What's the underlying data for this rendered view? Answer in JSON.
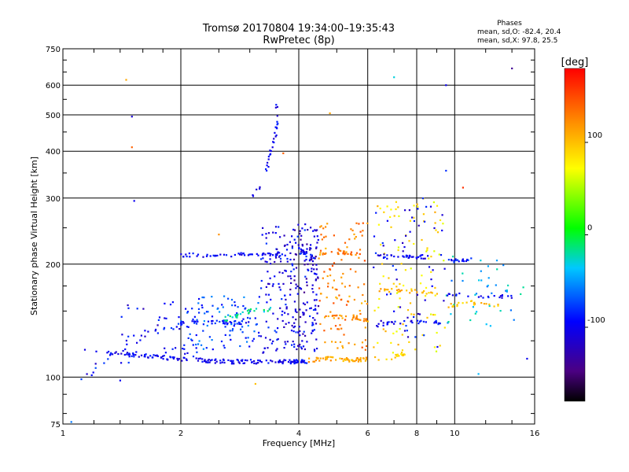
{
  "chart_data": {
    "type": "scatter",
    "title": "Tromsø 20170804 19:34:00–19:35:43",
    "subtitle": "RwPretec (8p)",
    "xlabel": "Frequency [MHz]",
    "ylabel": "Stationary phase Virtual Height [km]",
    "x_scale": "log",
    "y_scale": "log",
    "xlim": [
      1,
      16
    ],
    "ylim": [
      75,
      750
    ],
    "x_ticks": [
      1,
      2,
      4,
      6,
      8,
      10,
      16
    ],
    "y_ticks": [
      75,
      100,
      200,
      300,
      400,
      500,
      600,
      750
    ],
    "grid": true,
    "info": {
      "heading": "Phases",
      "line_o": "mean, sd,O: -82.4, 20.4",
      "line_x": "mean, sd,X:  97.8, 25.5"
    },
    "colorbar": {
      "label": "[deg]",
      "range": [
        -180,
        180
      ],
      "ticks": [
        100,
        0,
        -100
      ],
      "colors": [
        "#000000",
        "#4b0082",
        "#0000ff",
        "#00c8ff",
        "#00ff00",
        "#ffff00",
        "#ff8c00",
        "#ff0000"
      ]
    },
    "traces": [
      {
        "x": [
          1.28,
          1.6,
          2.0,
          2.6,
          3.2,
          3.8,
          4.2
        ],
        "y": [
          116,
          114,
          112,
          110,
          110,
          110,
          110
        ],
        "phase": -100,
        "n": 170
      },
      {
        "x": [
          4.2,
          4.8,
          5.5,
          6.0
        ],
        "y": [
          111,
          112,
          111,
          112
        ],
        "phase": 110,
        "n": 55
      },
      {
        "x": [
          6.2,
          7.0,
          7.5
        ],
        "y": [
          112,
          113,
          116
        ],
        "phase": 90,
        "n": 20
      },
      {
        "x": [
          1.7,
          2.1,
          2.5,
          3.0
        ],
        "y": [
          133,
          140,
          140,
          140
        ],
        "phase": -90,
        "n": 45
      },
      {
        "x": [
          2.6,
          3.0,
          3.4
        ],
        "y": [
          143,
          150,
          152
        ],
        "phase": -20,
        "n": 25
      },
      {
        "x": [
          2.0,
          2.5,
          3.0,
          3.7
        ],
        "y": [
          212,
          211,
          212,
          213
        ],
        "phase": -100,
        "n": 55
      },
      {
        "x": [
          4.0,
          4.4
        ],
        "y": [
          220,
          205
        ],
        "phase": -100,
        "n": 18
      },
      {
        "x": [
          4.5,
          5.2,
          5.8
        ],
        "y": [
          215,
          215,
          213
        ],
        "phase": 130,
        "n": 28
      },
      {
        "x": [
          6.3,
          7.8,
          8.5
        ],
        "y": [
          210,
          210,
          209
        ],
        "phase": -100,
        "n": 30
      },
      {
        "x": [
          9.5,
          11.0
        ],
        "y": [
          205,
          205
        ],
        "phase": -90,
        "n": 18
      },
      {
        "x": [
          4.6,
          5.5,
          6.0
        ],
        "y": [
          145,
          145,
          142
        ],
        "phase": 120,
        "n": 28
      },
      {
        "x": [
          6.3,
          7.2,
          8.2,
          9.3
        ],
        "y": [
          138,
          140,
          140,
          140
        ],
        "phase": -95,
        "n": 35
      },
      {
        "x": [
          6.4,
          7.5,
          8.8
        ],
        "y": [
          170,
          170,
          168
        ],
        "phase": 105,
        "n": 28
      },
      {
        "x": [
          9.5,
          11.0,
          13.0
        ],
        "y": [
          155,
          158,
          155
        ],
        "phase": 100,
        "n": 25
      },
      {
        "x": [
          9.5,
          11.5,
          14.0
        ],
        "y": [
          167,
          165,
          163
        ],
        "phase": -100,
        "n": 22
      },
      {
        "x": [
          3.3,
          3.4,
          3.5,
          3.52
        ],
        "y": [
          350,
          400,
          460,
          545
        ],
        "phase": -100,
        "n": 28
      },
      {
        "x": [
          3.0,
          3.2
        ],
        "y": [
          300,
          320
        ],
        "phase": -100,
        "n": 5
      }
    ],
    "clouds": [
      {
        "x": [
          3.2,
          4.5
        ],
        "y": [
          115,
          260
        ],
        "phase": -100,
        "n": 190
      },
      {
        "x": [
          3.8,
          4.5
        ],
        "y": [
          118,
          255
        ],
        "phase": -120,
        "n": 80
      },
      {
        "x": [
          4.5,
          6.0
        ],
        "y": [
          118,
          260
        ],
        "phase": 125,
        "n": 110
      },
      {
        "x": [
          6.2,
          9.5
        ],
        "y": [
          115,
          300
        ],
        "phase": 85,
        "n": 100
      },
      {
        "x": [
          6.2,
          9.5
        ],
        "y": [
          120,
          300
        ],
        "phase": -100,
        "n": 60
      },
      {
        "x": [
          9.5,
          15.0
        ],
        "y": [
          135,
          210
        ],
        "phase": -40,
        "n": 40
      },
      {
        "x": [
          2.0,
          3.2
        ],
        "y": [
          118,
          165
        ],
        "phase": -75,
        "n": 100
      },
      {
        "x": [
          1.4,
          2.2
        ],
        "y": [
          113,
          160
        ],
        "phase": -100,
        "n": 45
      },
      {
        "x": [
          1.0,
          1.6
        ],
        "y": [
          96,
          120
        ],
        "phase": -95,
        "n": 12
      }
    ],
    "points": [
      {
        "x": 1.45,
        "y": 620,
        "phase": 110
      },
      {
        "x": 1.5,
        "y": 495,
        "phase": -110
      },
      {
        "x": 1.5,
        "y": 410,
        "phase": 140
      },
      {
        "x": 1.52,
        "y": 295,
        "phase": -100
      },
      {
        "x": 4.8,
        "y": 505,
        "phase": 110
      },
      {
        "x": 7.0,
        "y": 630,
        "phase": -30
      },
      {
        "x": 9.5,
        "y": 355,
        "phase": -80
      },
      {
        "x": 9.5,
        "y": 600,
        "phase": -100
      },
      {
        "x": 14.0,
        "y": 665,
        "phase": -140
      },
      {
        "x": 3.65,
        "y": 395,
        "phase": 140
      },
      {
        "x": 3.1,
        "y": 96,
        "phase": 100
      },
      {
        "x": 15.3,
        "y": 112,
        "phase": -100
      },
      {
        "x": 1.05,
        "y": 76,
        "phase": -60
      },
      {
        "x": 10.5,
        "y": 320,
        "phase": 160
      },
      {
        "x": 2.5,
        "y": 240,
        "phase": 120
      },
      {
        "x": 1.4,
        "y": 98,
        "phase": -100
      },
      {
        "x": 11.5,
        "y": 102,
        "phase": -40
      }
    ]
  }
}
